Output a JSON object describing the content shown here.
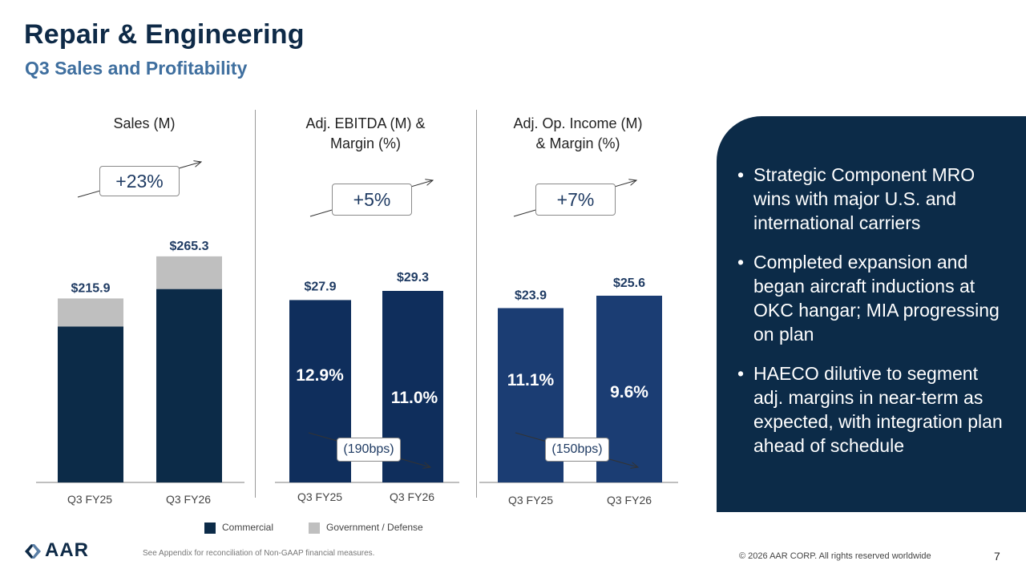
{
  "header": {
    "title": "Repair & Engineering",
    "subtitle": "Q3 Sales and Profitability"
  },
  "colors": {
    "commercial_sales": "#0c2b48",
    "gov_defense": "#bfbfbf",
    "ebitda_bar": "#0f2e5c",
    "opincome_bar": "#1b3d73",
    "panel": "#0c2b48",
    "label_text": "#1f3b63"
  },
  "chart_data": [
    {
      "type": "bar",
      "stacked": true,
      "title": "Sales (M)",
      "categories": [
        "Q3 FY25",
        "Q3 FY26"
      ],
      "series": [
        {
          "name": "Commercial",
          "values": [
            183.0,
            227.0
          ]
        },
        {
          "name": "Government / Defense",
          "values": [
            32.9,
            38.3
          ]
        }
      ],
      "totals": [
        215.9,
        265.3
      ],
      "total_labels": [
        "$215.9",
        "$265.3"
      ],
      "change_label": "+23%",
      "ylim": [
        0,
        300
      ]
    },
    {
      "type": "bar",
      "title": "Adj. EBITDA (M) & Margin (%)",
      "title_lines": [
        "Adj. EBITDA (M) &",
        "Margin (%)"
      ],
      "categories": [
        "Q3 FY25",
        "Q3 FY26"
      ],
      "values": [
        27.9,
        29.3
      ],
      "value_labels": [
        "$27.9",
        "$29.3"
      ],
      "margins": [
        12.9,
        11.0
      ],
      "margin_labels": [
        "12.9%",
        "11.0%"
      ],
      "change_label": "+5%",
      "margin_change_label": "(190bps)",
      "ylim": [
        0,
        30
      ]
    },
    {
      "type": "bar",
      "title": "Adj. Op. Income (M) & Margin (%)",
      "title_lines": [
        "Adj. Op. Income (M)",
        "& Margin (%)"
      ],
      "categories": [
        "Q3 FY25",
        "Q3 FY26"
      ],
      "values": [
        23.9,
        25.6
      ],
      "value_labels": [
        "$23.9",
        "$25.6"
      ],
      "margins": [
        11.1,
        9.6
      ],
      "margin_labels": [
        "11.1%",
        "9.6%"
      ],
      "change_label": "+7%",
      "margin_change_label": "(150bps)",
      "ylim": [
        0,
        26
      ]
    }
  ],
  "legend": {
    "items": [
      {
        "label": "Commercial",
        "color": "#0c2b48"
      },
      {
        "label": "Government / Defense",
        "color": "#bfbfbf"
      }
    ]
  },
  "highlights": {
    "items": [
      "Strategic Component MRO wins with major U.S. and international carriers",
      "Completed expansion and began aircraft inductions at OKC hangar; MIA progressing on plan",
      "HAECO dilutive to segment adj. margins in near-term as expected, with integration plan ahead of schedule"
    ]
  },
  "footer": {
    "logo_text": "AAR",
    "note": "See Appendix for reconciliation of Non-GAAP financial measures.",
    "copyright": "© 2026 AAR CORP. All rights reserved worldwide",
    "page_number": "7"
  }
}
